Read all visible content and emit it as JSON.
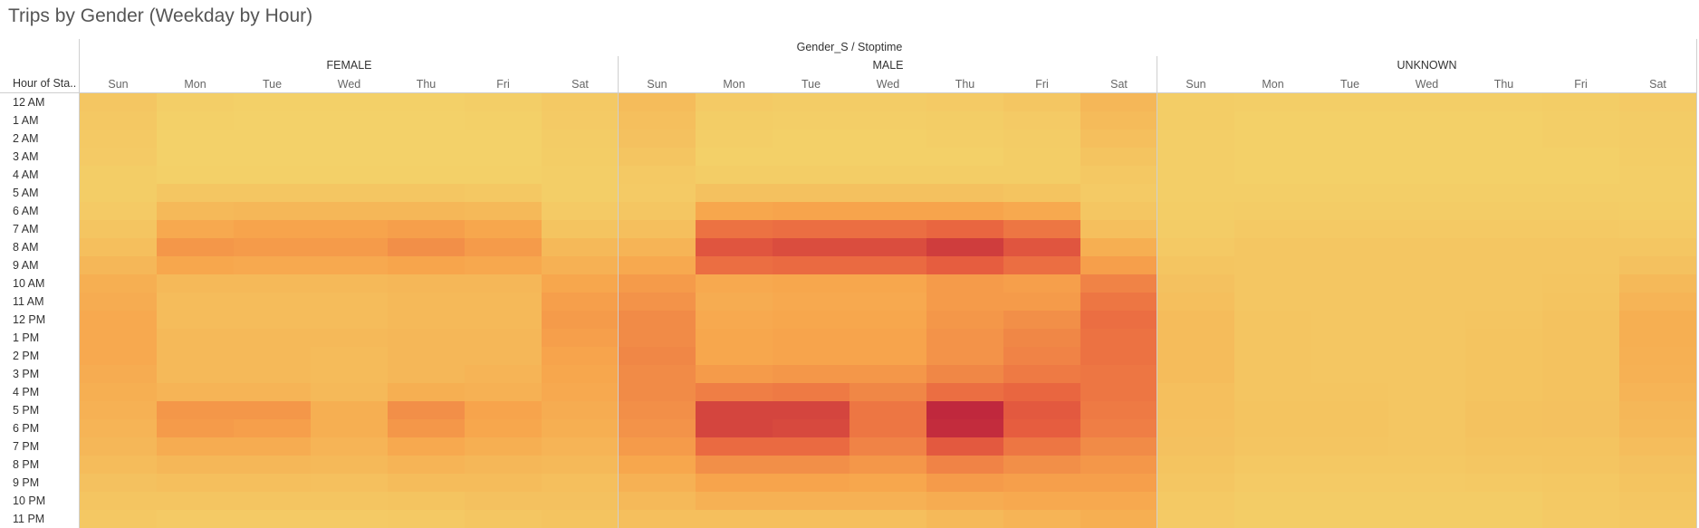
{
  "title": "Trips by Gender (Weekday by Hour)",
  "chart_data": {
    "type": "heatmap",
    "title": "Trips by Gender (Weekday by Hour)",
    "column_field_label": "Gender_S / Stoptime",
    "row_field_label": "Hour of Sta..",
    "groups": [
      "FEMALE",
      "MALE",
      "UNKNOWN"
    ],
    "days": [
      "Sun",
      "Mon",
      "Tue",
      "Wed",
      "Thu",
      "Fri",
      "Sat"
    ],
    "hours": [
      "12 AM",
      "1 AM",
      "2 AM",
      "3 AM",
      "4 AM",
      "5 AM",
      "6 AM",
      "7 AM",
      "8 AM",
      "9 AM",
      "10 AM",
      "11 AM",
      "12 PM",
      "1 PM",
      "2 PM",
      "3 PM",
      "4 PM",
      "5 PM",
      "6 PM",
      "7 PM",
      "8 PM",
      "9 PM",
      "10 PM",
      "11 PM"
    ],
    "color_scale": {
      "low": "#f3d169",
      "mid1": "#f7a54c",
      "mid2": "#e8603f",
      "high": "#b71c3c"
    },
    "intensity_note": "relative intensity 0-1",
    "values": {
      "FEMALE": [
        [
          0.08,
          0.02,
          0.01,
          0.01,
          0.01,
          0.02,
          0.06
        ],
        [
          0.07,
          0.01,
          0.0,
          0.0,
          0.0,
          0.01,
          0.05
        ],
        [
          0.06,
          0.0,
          0.0,
          0.0,
          0.0,
          0.0,
          0.04
        ],
        [
          0.05,
          0.0,
          0.0,
          0.0,
          0.0,
          0.0,
          0.03
        ],
        [
          0.03,
          0.01,
          0.01,
          0.01,
          0.01,
          0.01,
          0.02
        ],
        [
          0.03,
          0.08,
          0.08,
          0.08,
          0.08,
          0.07,
          0.02
        ],
        [
          0.05,
          0.18,
          0.2,
          0.2,
          0.2,
          0.18,
          0.05
        ],
        [
          0.09,
          0.3,
          0.34,
          0.34,
          0.36,
          0.32,
          0.1
        ],
        [
          0.14,
          0.4,
          0.38,
          0.38,
          0.44,
          0.38,
          0.18
        ],
        [
          0.2,
          0.32,
          0.3,
          0.3,
          0.33,
          0.31,
          0.24
        ],
        [
          0.26,
          0.18,
          0.18,
          0.18,
          0.2,
          0.2,
          0.32
        ],
        [
          0.28,
          0.16,
          0.16,
          0.16,
          0.18,
          0.18,
          0.36
        ],
        [
          0.3,
          0.16,
          0.16,
          0.16,
          0.18,
          0.18,
          0.38
        ],
        [
          0.3,
          0.18,
          0.18,
          0.18,
          0.2,
          0.2,
          0.36
        ],
        [
          0.3,
          0.18,
          0.18,
          0.17,
          0.2,
          0.2,
          0.34
        ],
        [
          0.28,
          0.18,
          0.18,
          0.17,
          0.2,
          0.22,
          0.32
        ],
        [
          0.26,
          0.22,
          0.22,
          0.18,
          0.26,
          0.24,
          0.3
        ],
        [
          0.24,
          0.4,
          0.4,
          0.26,
          0.44,
          0.34,
          0.28
        ],
        [
          0.22,
          0.38,
          0.36,
          0.26,
          0.4,
          0.32,
          0.26
        ],
        [
          0.2,
          0.28,
          0.28,
          0.22,
          0.3,
          0.26,
          0.22
        ],
        [
          0.16,
          0.2,
          0.2,
          0.18,
          0.22,
          0.2,
          0.18
        ],
        [
          0.12,
          0.14,
          0.14,
          0.13,
          0.16,
          0.16,
          0.14
        ],
        [
          0.09,
          0.09,
          0.09,
          0.09,
          0.1,
          0.12,
          0.12
        ],
        [
          0.07,
          0.05,
          0.05,
          0.05,
          0.06,
          0.08,
          0.1
        ]
      ],
      "MALE": [
        [
          0.16,
          0.05,
          0.04,
          0.04,
          0.05,
          0.08,
          0.2
        ],
        [
          0.14,
          0.03,
          0.02,
          0.02,
          0.03,
          0.05,
          0.17
        ],
        [
          0.12,
          0.02,
          0.01,
          0.01,
          0.02,
          0.04,
          0.14
        ],
        [
          0.09,
          0.01,
          0.01,
          0.01,
          0.01,
          0.03,
          0.1
        ],
        [
          0.06,
          0.03,
          0.03,
          0.03,
          0.03,
          0.03,
          0.07
        ],
        [
          0.05,
          0.12,
          0.12,
          0.12,
          0.12,
          0.1,
          0.05
        ],
        [
          0.08,
          0.32,
          0.34,
          0.34,
          0.34,
          0.3,
          0.08
        ],
        [
          0.14,
          0.58,
          0.6,
          0.6,
          0.64,
          0.56,
          0.14
        ],
        [
          0.22,
          0.72,
          0.76,
          0.76,
          0.84,
          0.72,
          0.26
        ],
        [
          0.3,
          0.6,
          0.62,
          0.62,
          0.68,
          0.6,
          0.36
        ],
        [
          0.38,
          0.3,
          0.32,
          0.32,
          0.38,
          0.36,
          0.5
        ],
        [
          0.42,
          0.28,
          0.3,
          0.3,
          0.38,
          0.38,
          0.56
        ],
        [
          0.46,
          0.3,
          0.32,
          0.32,
          0.4,
          0.44,
          0.6
        ],
        [
          0.46,
          0.32,
          0.34,
          0.34,
          0.42,
          0.48,
          0.58
        ],
        [
          0.48,
          0.32,
          0.34,
          0.34,
          0.42,
          0.5,
          0.58
        ],
        [
          0.46,
          0.38,
          0.4,
          0.4,
          0.48,
          0.54,
          0.56
        ],
        [
          0.46,
          0.52,
          0.54,
          0.48,
          0.6,
          0.64,
          0.56
        ],
        [
          0.44,
          0.8,
          0.8,
          0.56,
          0.94,
          0.7,
          0.54
        ],
        [
          0.42,
          0.8,
          0.78,
          0.56,
          0.92,
          0.68,
          0.52
        ],
        [
          0.38,
          0.62,
          0.62,
          0.5,
          0.7,
          0.56,
          0.46
        ],
        [
          0.32,
          0.44,
          0.44,
          0.4,
          0.5,
          0.44,
          0.4
        ],
        [
          0.24,
          0.34,
          0.34,
          0.32,
          0.38,
          0.36,
          0.36
        ],
        [
          0.18,
          0.24,
          0.24,
          0.24,
          0.28,
          0.3,
          0.3
        ],
        [
          0.14,
          0.14,
          0.14,
          0.14,
          0.18,
          0.22,
          0.26
        ]
      ],
      "UNKNOWN": [
        [
          0.03,
          0.02,
          0.02,
          0.02,
          0.02,
          0.03,
          0.05
        ],
        [
          0.03,
          0.01,
          0.01,
          0.01,
          0.01,
          0.02,
          0.04
        ],
        [
          0.02,
          0.01,
          0.01,
          0.01,
          0.01,
          0.02,
          0.04
        ],
        [
          0.02,
          0.01,
          0.01,
          0.01,
          0.01,
          0.01,
          0.03
        ],
        [
          0.02,
          0.01,
          0.01,
          0.01,
          0.01,
          0.01,
          0.02
        ],
        [
          0.02,
          0.02,
          0.02,
          0.02,
          0.02,
          0.02,
          0.02
        ],
        [
          0.03,
          0.04,
          0.04,
          0.04,
          0.04,
          0.04,
          0.03
        ],
        [
          0.04,
          0.06,
          0.06,
          0.06,
          0.06,
          0.06,
          0.05
        ],
        [
          0.06,
          0.08,
          0.08,
          0.08,
          0.08,
          0.08,
          0.08
        ],
        [
          0.09,
          0.08,
          0.08,
          0.08,
          0.08,
          0.08,
          0.12
        ],
        [
          0.12,
          0.08,
          0.08,
          0.08,
          0.08,
          0.09,
          0.18
        ],
        [
          0.14,
          0.08,
          0.08,
          0.08,
          0.08,
          0.1,
          0.22
        ],
        [
          0.16,
          0.09,
          0.08,
          0.08,
          0.09,
          0.11,
          0.26
        ],
        [
          0.16,
          0.09,
          0.08,
          0.08,
          0.1,
          0.11,
          0.26
        ],
        [
          0.16,
          0.09,
          0.08,
          0.08,
          0.1,
          0.11,
          0.25
        ],
        [
          0.16,
          0.09,
          0.08,
          0.08,
          0.1,
          0.11,
          0.24
        ],
        [
          0.14,
          0.09,
          0.09,
          0.08,
          0.1,
          0.11,
          0.22
        ],
        [
          0.14,
          0.1,
          0.1,
          0.08,
          0.11,
          0.12,
          0.2
        ],
        [
          0.13,
          0.1,
          0.1,
          0.08,
          0.11,
          0.12,
          0.18
        ],
        [
          0.12,
          0.09,
          0.09,
          0.08,
          0.1,
          0.1,
          0.15
        ],
        [
          0.1,
          0.07,
          0.07,
          0.07,
          0.08,
          0.09,
          0.12
        ],
        [
          0.08,
          0.05,
          0.05,
          0.05,
          0.06,
          0.07,
          0.1
        ],
        [
          0.06,
          0.04,
          0.04,
          0.04,
          0.04,
          0.06,
          0.08
        ],
        [
          0.05,
          0.03,
          0.03,
          0.03,
          0.03,
          0.05,
          0.07
        ]
      ]
    }
  }
}
